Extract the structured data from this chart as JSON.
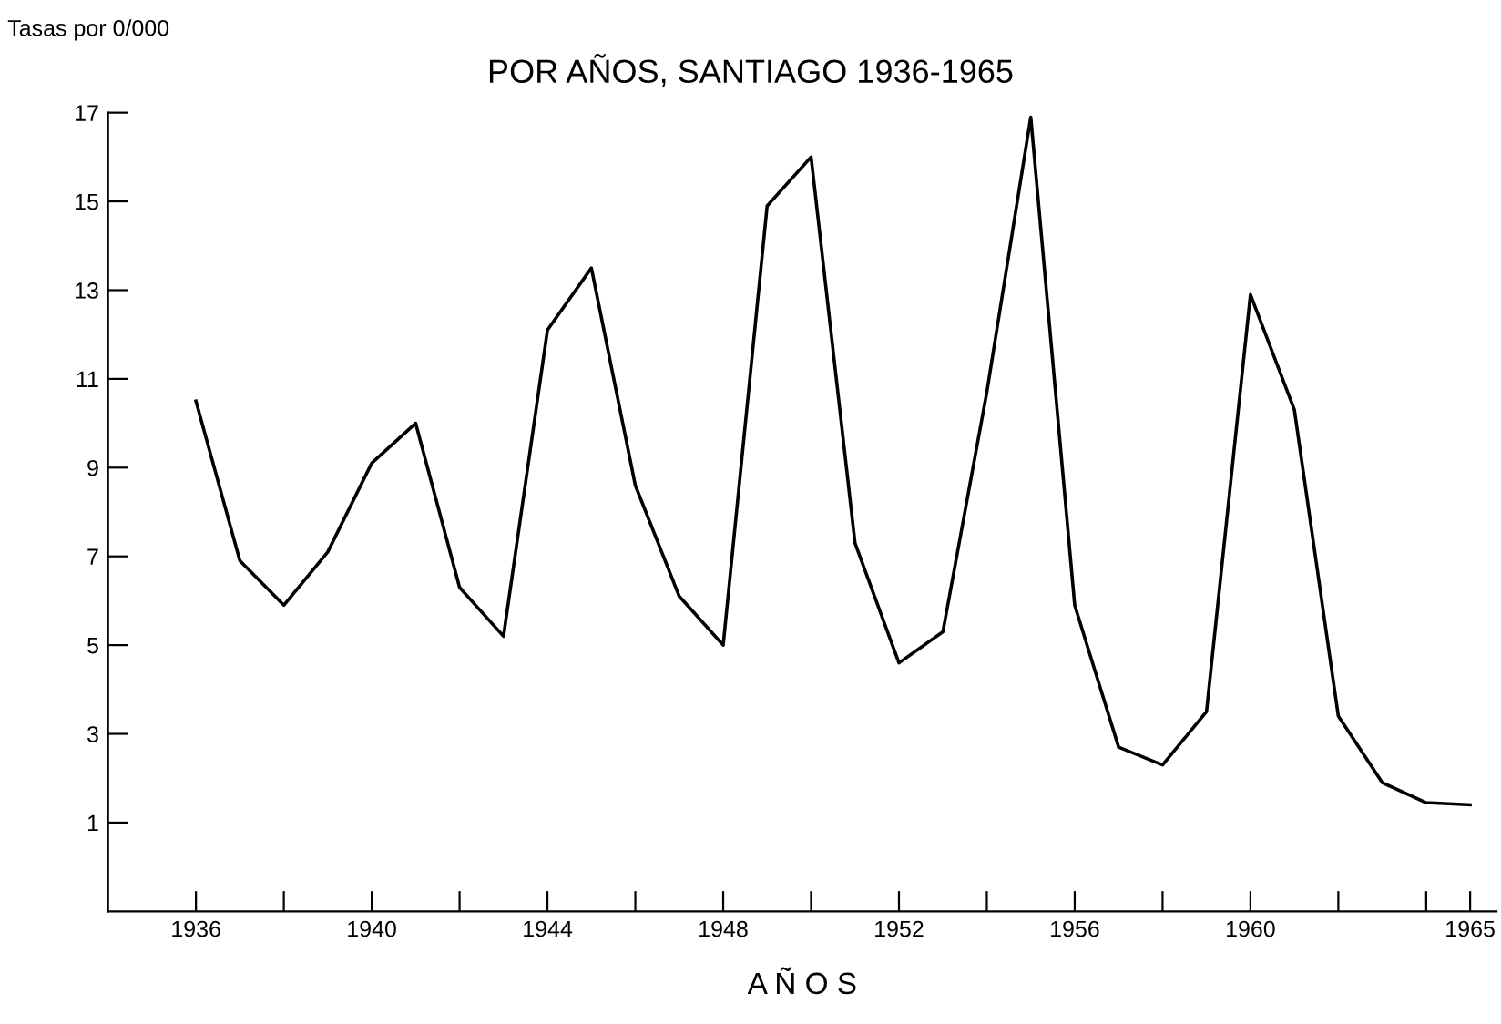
{
  "chart_data": {
    "type": "line",
    "title": "POR AÑOS, SANTIAGO 1936-1965",
    "ylabel": "Tasas por 0/000",
    "xlabel": "A Ñ O S",
    "x": [
      1936,
      1937,
      1938,
      1939,
      1940,
      1941,
      1942,
      1943,
      1944,
      1945,
      1946,
      1947,
      1948,
      1949,
      1950,
      1951,
      1952,
      1953,
      1954,
      1955,
      1956,
      1957,
      1958,
      1959,
      1960,
      1961,
      1962,
      1963,
      1964,
      1965
    ],
    "series": [
      {
        "color": "#000000",
        "values": [
          10.5,
          6.9,
          5.9,
          7.1,
          9.1,
          10.0,
          6.3,
          5.2,
          12.1,
          13.5,
          8.6,
          6.1,
          5.0,
          14.9,
          16.0,
          7.3,
          4.6,
          5.3,
          10.7,
          16.9,
          5.9,
          2.7,
          2.3,
          3.5,
          12.9,
          10.3,
          3.4,
          1.9,
          1.45,
          1.4
        ]
      }
    ],
    "xlim": [
      1934,
      1965.6
    ],
    "ylim": [
      -1,
      17
    ],
    "xticks": [
      1936,
      {
        "value": 1938,
        "label": null
      },
      1940,
      {
        "value": 1942,
        "label": null
      },
      1944,
      {
        "value": 1946,
        "label": null
      },
      1948,
      {
        "value": 1950,
        "label": null
      },
      1952,
      {
        "value": 1954,
        "label": null
      },
      1956,
      {
        "value": 1958,
        "label": null
      },
      1960,
      {
        "value": 1962,
        "label": null
      },
      {
        "value": 1964,
        "label": null
      },
      1965
    ],
    "yticks": [
      1,
      3,
      5,
      7,
      9,
      11,
      13,
      15,
      17
    ],
    "grid": false,
    "legend": false,
    "marker": "none",
    "line_style": "solid"
  }
}
